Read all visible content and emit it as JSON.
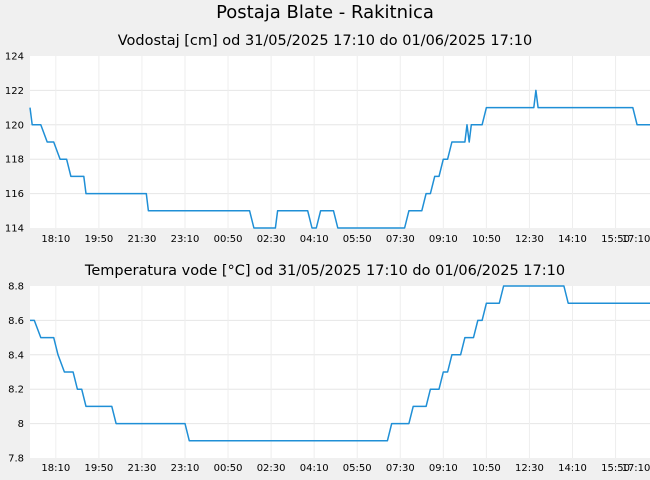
{
  "page": {
    "title": "Postaja Blate - Rakitnica"
  },
  "chart_data": [
    {
      "type": "line",
      "title": "Vodostaj [cm] od 31/05/2025 17:10 do 01/06/2025 17:10",
      "ylim": [
        114,
        124
      ],
      "yticks": [
        "124",
        "122",
        "120",
        "118",
        "116",
        "114"
      ],
      "xticks": [
        "18:10",
        "19:50",
        "21:30",
        "23:10",
        "00:50",
        "02:30",
        "04:10",
        "05:50",
        "07:30",
        "09:10",
        "10:50",
        "12:30",
        "14:10",
        "15:50",
        "17:10"
      ],
      "xrange_minutes": [
        0,
        1440
      ],
      "grid": true,
      "line_color": "#1f8fd6",
      "series": [
        {
          "x_minutes": [
            0,
            5,
            25,
            40,
            55,
            70,
            85,
            95,
            110,
            125,
            130,
            145,
            160,
            175,
            190,
            205,
            220,
            235,
            245,
            260,
            270,
            275,
            295,
            300,
            315,
            325,
            335,
            345,
            360,
            370,
            380,
            390,
            400,
            410,
            420,
            430,
            440,
            450,
            460,
            470,
            480,
            490,
            500,
            510,
            520,
            530,
            540,
            550,
            560,
            570,
            575,
            580,
            595,
            605,
            615,
            625,
            635,
            645,
            655,
            665,
            675,
            685,
            695,
            705,
            715,
            720,
            730,
            740,
            750,
            760,
            770,
            780,
            790,
            800,
            810,
            820,
            830,
            840,
            850,
            860,
            870,
            880,
            890,
            900,
            910,
            920,
            930,
            940,
            950,
            960,
            970,
            980,
            990,
            1000,
            1010,
            1015,
            1020,
            1025,
            1030,
            1040,
            1050,
            1060,
            1070,
            1080,
            1090,
            1100,
            1110,
            1120,
            1130,
            1140,
            1150,
            1160,
            1170,
            1175,
            1180,
            1185,
            1190,
            1200,
            1210,
            1220,
            1230,
            1240,
            1250,
            1260,
            1270,
            1280,
            1290,
            1300,
            1310,
            1320,
            1330,
            1335,
            1345,
            1355,
            1365,
            1375,
            1385,
            1395,
            1400,
            1410,
            1420,
            1430,
            1440
          ],
          "y": [
            121,
            120,
            120,
            119,
            119,
            118,
            118,
            117,
            117,
            117,
            116,
            116,
            116,
            116,
            116,
            116,
            116,
            116,
            116,
            116,
            116,
            115,
            115,
            115,
            115,
            115,
            115,
            115,
            115,
            115,
            115,
            115,
            115,
            115,
            115,
            115,
            115,
            115,
            115,
            115,
            115,
            115,
            115,
            115,
            114,
            114,
            114,
            114,
            114,
            114,
            115,
            115,
            115,
            115,
            115,
            115,
            115,
            115,
            114,
            114,
            115,
            115,
            115,
            115,
            114,
            114,
            114,
            114,
            114,
            114,
            114,
            114,
            114,
            114,
            114,
            114,
            114,
            114,
            114,
            114,
            114,
            115,
            115,
            115,
            115,
            116,
            116,
            117,
            117,
            118,
            118,
            119,
            119,
            119,
            119,
            120,
            119,
            120,
            120,
            120,
            120,
            121,
            121,
            121,
            121,
            121,
            121,
            121,
            121,
            121,
            121,
            121,
            121,
            122,
            121,
            121,
            121,
            121,
            121,
            121,
            121,
            121,
            121,
            121,
            121,
            121,
            121,
            121,
            121,
            121,
            121,
            121,
            121,
            121,
            121,
            121,
            121,
            121,
            121,
            120,
            120,
            120,
            120
          ]
        }
      ]
    },
    {
      "type": "line",
      "title": "Temperatura vode [°C] od 31/05/2025 17:10 do 01/06/2025 17:10",
      "ylim": [
        7.8,
        8.8
      ],
      "yticks": [
        "8.8",
        "8.6",
        "8.4",
        "8.2",
        "8",
        "7.8"
      ],
      "xticks": [
        "18:10",
        "19:50",
        "21:30",
        "23:10",
        "00:50",
        "02:30",
        "04:10",
        "05:50",
        "07:30",
        "09:10",
        "10:50",
        "12:30",
        "14:10",
        "15:50",
        "17:10"
      ],
      "xrange_minutes": [
        0,
        1440
      ],
      "grid": true,
      "line_color": "#1f8fd6",
      "series": [
        {
          "x_minutes": [
            0,
            10,
            25,
            35,
            45,
            55,
            65,
            80,
            90,
            100,
            110,
            120,
            130,
            140,
            150,
            160,
            170,
            180,
            190,
            200,
            210,
            220,
            230,
            240,
            250,
            260,
            270,
            280,
            290,
            300,
            310,
            320,
            330,
            340,
            350,
            360,
            370,
            380,
            390,
            400,
            410,
            420,
            430,
            440,
            450,
            460,
            470,
            480,
            490,
            500,
            510,
            520,
            530,
            540,
            550,
            560,
            570,
            580,
            590,
            600,
            610,
            620,
            630,
            640,
            650,
            660,
            670,
            680,
            690,
            700,
            710,
            720,
            730,
            740,
            750,
            760,
            770,
            780,
            790,
            800,
            810,
            820,
            830,
            840,
            850,
            860,
            870,
            880,
            890,
            900,
            910,
            920,
            930,
            940,
            950,
            960,
            970,
            980,
            990,
            1000,
            1010,
            1020,
            1030,
            1040,
            1050,
            1060,
            1070,
            1080,
            1090,
            1100,
            1110,
            1120,
            1130,
            1140,
            1150,
            1160,
            1170,
            1180,
            1190,
            1200,
            1210,
            1220,
            1230,
            1240,
            1250,
            1260,
            1270,
            1280,
            1290,
            1300,
            1310,
            1320,
            1330,
            1340,
            1350,
            1360,
            1370,
            1380,
            1390,
            1400,
            1410,
            1420,
            1430,
            1440
          ],
          "y": [
            8.6,
            8.6,
            8.5,
            8.5,
            8.5,
            8.5,
            8.4,
            8.3,
            8.3,
            8.3,
            8.2,
            8.2,
            8.1,
            8.1,
            8.1,
            8.1,
            8.1,
            8.1,
            8.1,
            8.0,
            8.0,
            8.0,
            8.0,
            8.0,
            8.0,
            8.0,
            8.0,
            8.0,
            8.0,
            8.0,
            8.0,
            8.0,
            8.0,
            8.0,
            8.0,
            8.0,
            7.9,
            7.9,
            7.9,
            7.9,
            7.9,
            7.9,
            7.9,
            7.9,
            7.9,
            7.9,
            7.9,
            7.9,
            7.9,
            7.9,
            7.9,
            7.9,
            7.9,
            7.9,
            7.9,
            7.9,
            7.9,
            7.9,
            7.9,
            7.9,
            7.9,
            7.9,
            7.9,
            7.9,
            7.9,
            7.9,
            7.9,
            7.9,
            7.9,
            7.9,
            7.9,
            7.9,
            7.9,
            7.9,
            7.9,
            7.9,
            7.9,
            7.9,
            7.9,
            7.9,
            7.9,
            7.9,
            7.9,
            8.0,
            8.0,
            8.0,
            8.0,
            8.0,
            8.1,
            8.1,
            8.1,
            8.1,
            8.2,
            8.2,
            8.2,
            8.3,
            8.3,
            8.4,
            8.4,
            8.4,
            8.5,
            8.5,
            8.5,
            8.6,
            8.6,
            8.7,
            8.7,
            8.7,
            8.7,
            8.8,
            8.8,
            8.8,
            8.8,
            8.8,
            8.8,
            8.8,
            8.8,
            8.8,
            8.8,
            8.8,
            8.8,
            8.8,
            8.8,
            8.8,
            8.7,
            8.7,
            8.7,
            8.7,
            8.7,
            8.7,
            8.7,
            8.7,
            8.7,
            8.7,
            8.7,
            8.7,
            8.7,
            8.7,
            8.7,
            8.7,
            8.7,
            8.7,
            8.7,
            8.7
          ]
        }
      ]
    }
  ]
}
